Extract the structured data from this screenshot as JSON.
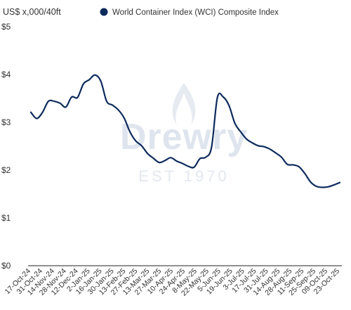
{
  "chart_data": {
    "type": "line",
    "y_unit_label": "US$ x,000/40ft",
    "yticks": [
      "$0",
      "$1",
      "$2",
      "$3",
      "$4",
      "$5"
    ],
    "ylim": [
      0,
      5
    ],
    "grid": false,
    "legend_position": "top",
    "watermark": {
      "brand": "Drewry",
      "tagline": "EST 1970"
    },
    "categories": [
      "17-Oct-24",
      "31-Oct-24",
      "14-Nov-24",
      "28-Nov-24",
      "12-Dec-24",
      "2-Jan-25",
      "16-Jan-25",
      "30-Jan-25",
      "13-Feb-25",
      "27-Feb-25",
      "13-Mar-25",
      "27-Mar-25",
      "10-Apr-25",
      "24-Apr-25",
      "8-May-25",
      "22-May-25",
      "5-Jun-25",
      "19-Jun-25",
      "3-Jul-25",
      "17-Jul-25",
      "31-Jul-25",
      "14-Aug-25",
      "28-Aug-25",
      "11-Sep-25",
      "25-Sep-25",
      "09-Oct-25",
      "23-Oct-25"
    ],
    "series": [
      {
        "name": "World Container Index (WCI) Composite Index",
        "color": "#0d2a5c",
        "x": [
          "17-Oct-24",
          "24-Oct-24",
          "31-Oct-24",
          "07-Nov-24",
          "14-Nov-24",
          "21-Nov-24",
          "28-Nov-24",
          "05-Dec-24",
          "12-Dec-24",
          "19-Dec-24",
          "26-Dec-24",
          "02-Jan-25",
          "09-Jan-25",
          "16-Jan-25",
          "23-Jan-25",
          "30-Jan-25",
          "06-Feb-25",
          "13-Feb-25",
          "20-Feb-25",
          "27-Feb-25",
          "06-Mar-25",
          "13-Mar-25",
          "20-Mar-25",
          "27-Mar-25",
          "03-Apr-25",
          "10-Apr-25",
          "17-Apr-25",
          "24-Apr-25",
          "01-May-25",
          "08-May-25",
          "15-May-25",
          "22-May-25",
          "29-May-25",
          "05-Jun-25",
          "12-Jun-25",
          "19-Jun-25",
          "26-Jun-25",
          "03-Jul-25",
          "10-Jul-25",
          "17-Jul-25",
          "24-Jul-25",
          "31-Jul-25",
          "07-Aug-25",
          "14-Aug-25",
          "21-Aug-25",
          "28-Aug-25",
          "04-Sep-25",
          "11-Sep-25",
          "18-Sep-25",
          "25-Sep-25",
          "02-Oct-25",
          "09-Oct-25",
          "16-Oct-25",
          "23-Oct-25"
        ],
        "values": [
          3.21,
          3.08,
          3.21,
          3.44,
          3.44,
          3.4,
          3.32,
          3.53,
          3.52,
          3.8,
          3.89,
          3.99,
          3.86,
          3.44,
          3.36,
          3.26,
          3.09,
          2.8,
          2.61,
          2.51,
          2.35,
          2.25,
          2.16,
          2.2,
          2.26,
          2.19,
          2.14,
          2.08,
          2.06,
          2.24,
          2.27,
          2.48,
          3.52,
          3.53,
          3.35,
          2.98,
          2.8,
          2.65,
          2.57,
          2.51,
          2.49,
          2.44,
          2.36,
          2.27,
          2.12,
          2.11,
          2.07,
          1.93,
          1.75,
          1.66,
          1.64,
          1.65,
          1.69,
          1.74
        ]
      }
    ]
  }
}
